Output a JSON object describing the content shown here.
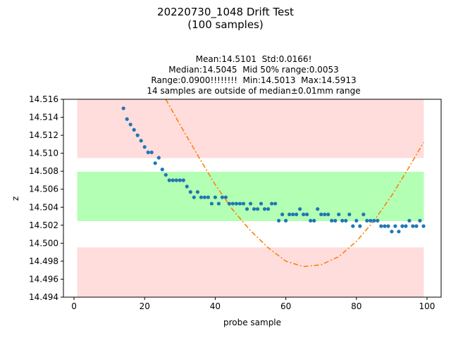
{
  "figure": {
    "suptitle_line1": "20220730_1048 Drift Test",
    "suptitle_line2": "(100 samples)",
    "title_lines": [
      "Mean:14.5101  Std:0.0166!",
      "Median:14.5045  Mid 50% range:0.0053",
      "Range:0.0900!!!!!!!!  Min:14.5013  Max:14.5913",
      "14 samples are outside of median±0.01mm range"
    ]
  },
  "chart_data": {
    "type": "scatter",
    "xlabel": "probe sample",
    "ylabel": "z",
    "xlim": [
      -3,
      104
    ],
    "ylim": [
      14.494,
      14.516
    ],
    "x_ticks": [
      0,
      20,
      40,
      60,
      80,
      100
    ],
    "y_ticks": [
      14.494,
      14.496,
      14.498,
      14.5,
      14.502,
      14.504,
      14.506,
      14.508,
      14.51,
      14.512,
      14.514,
      14.516
    ],
    "bands": [
      {
        "x0": 1,
        "x1": 99,
        "y0": 14.5095,
        "y1": 14.516,
        "color": "#ffdddd"
      },
      {
        "x0": 1,
        "x1": 99,
        "y0": 14.5025,
        "y1": 14.5079,
        "color": "#b3ffb3"
      },
      {
        "x0": 1,
        "x1": 99,
        "y0": 14.494,
        "y1": 14.4995,
        "color": "#ffdddd"
      }
    ],
    "points": {
      "color": "#1f77b4",
      "x": [
        14,
        15,
        16,
        17,
        18,
        19,
        20,
        21,
        22,
        23,
        24,
        25,
        26,
        27,
        28,
        29,
        30,
        31,
        32,
        33,
        34,
        35,
        36,
        37,
        38,
        39,
        40,
        41,
        42,
        43,
        44,
        45,
        46,
        47,
        48,
        49,
        50,
        51,
        52,
        53,
        54,
        55,
        56,
        57,
        58,
        59,
        60,
        61,
        62,
        63,
        64,
        65,
        66,
        67,
        68,
        69,
        70,
        71,
        72,
        73,
        74,
        75,
        76,
        77,
        78,
        79,
        80,
        81,
        82,
        83,
        84,
        85,
        86,
        87,
        88,
        89,
        90,
        91,
        92,
        93,
        94,
        95,
        96,
        97,
        98,
        99
      ],
      "y": [
        14.515,
        14.5138,
        14.5132,
        14.5126,
        14.512,
        14.5114,
        14.5107,
        14.5101,
        14.5101,
        14.5089,
        14.5095,
        14.5082,
        14.5076,
        14.507,
        14.507,
        14.507,
        14.507,
        14.507,
        14.5063,
        14.5057,
        14.5051,
        14.5057,
        14.5051,
        14.5051,
        14.5051,
        14.5044,
        14.5051,
        14.5044,
        14.5051,
        14.5051,
        14.5044,
        14.5044,
        14.5044,
        14.5044,
        14.5044,
        14.5038,
        14.5044,
        14.5038,
        14.5038,
        14.5044,
        14.5038,
        14.5038,
        14.5044,
        14.5044,
        14.5025,
        14.5032,
        14.5025,
        14.5032,
        14.5032,
        14.5032,
        14.5038,
        14.5032,
        14.5032,
        14.5025,
        14.5025,
        14.5038,
        14.5032,
        14.5032,
        14.5032,
        14.5025,
        14.5025,
        14.5032,
        14.5025,
        14.5025,
        14.5032,
        14.5019,
        14.5025,
        14.5019,
        14.5032,
        14.5025,
        14.5025,
        14.5025,
        14.5025,
        14.5019,
        14.5019,
        14.5019,
        14.5013,
        14.5019,
        14.5013,
        14.5019,
        14.5019,
        14.5025,
        14.5019,
        14.5019,
        14.5025,
        14.5019
      ]
    },
    "fit_curve": {
      "color": "#ff7f0e",
      "style": "dash-dot",
      "x": [
        26,
        30,
        35,
        40,
        45,
        50,
        55,
        60,
        65,
        70,
        75,
        80,
        85,
        90,
        95,
        99
      ],
      "y": [
        14.516,
        14.5132,
        14.5098,
        14.5065,
        14.5037,
        14.5014,
        14.4995,
        14.498,
        14.4974,
        14.4976,
        14.4985,
        14.5002,
        14.5025,
        14.5053,
        14.5085,
        14.5112
      ]
    }
  }
}
